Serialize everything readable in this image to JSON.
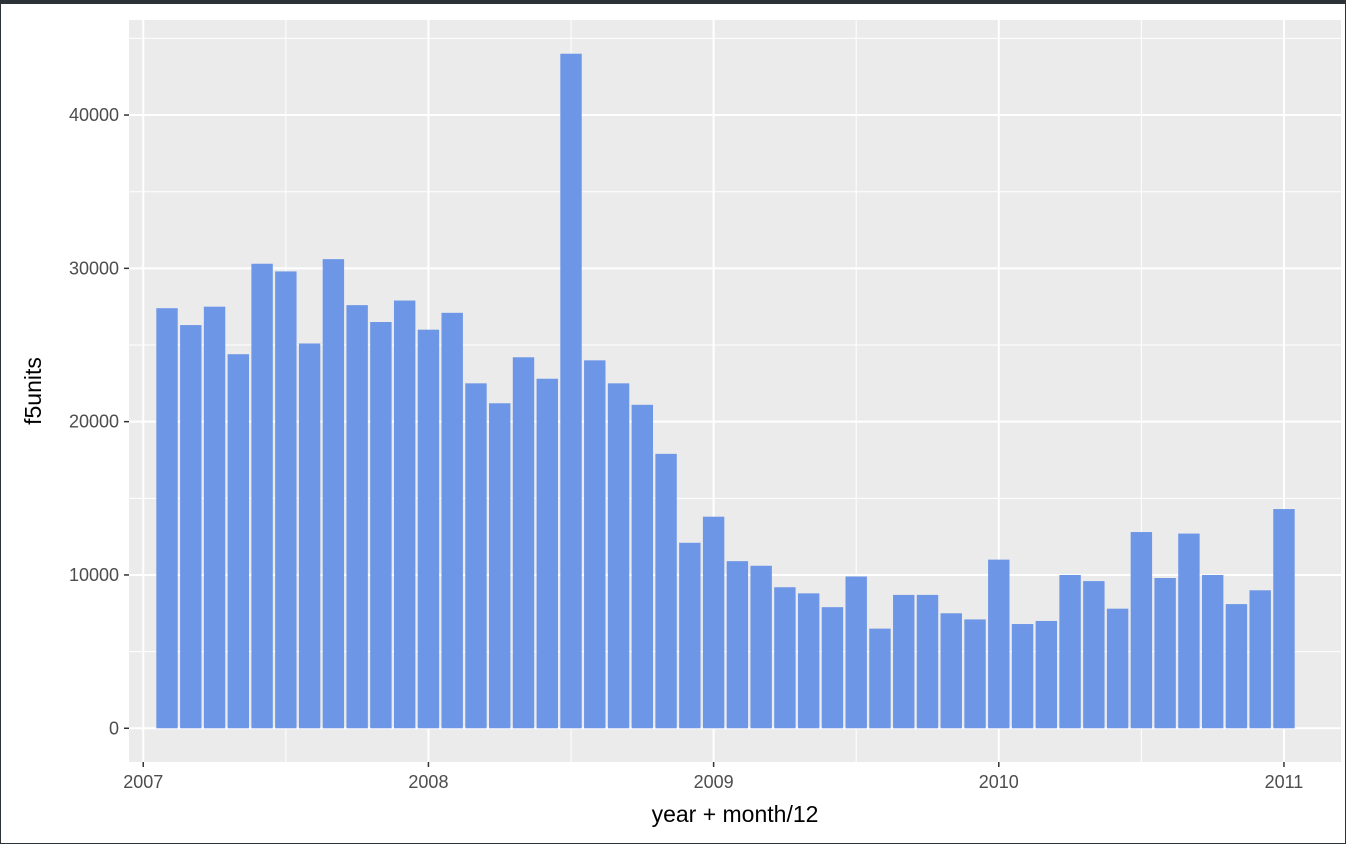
{
  "chart_data": {
    "type": "bar",
    "xlabel": "year + month/12",
    "ylabel": "f5units",
    "xlim": [
      2006.95,
      2011.2
    ],
    "ylim": [
      -2200,
      46200
    ],
    "x_ticks": [
      2007,
      2008,
      2009,
      2010,
      2011
    ],
    "x_tick_labels": [
      "2007",
      "2008",
      "2009",
      "2010",
      "2011"
    ],
    "y_ticks": [
      0,
      10000,
      20000,
      30000,
      40000
    ],
    "y_tick_labels": [
      "0",
      "10000",
      "20000",
      "30000",
      "40000"
    ],
    "bar_color": "#6d96e6",
    "panel_color": "#ebebeb",
    "grid": true,
    "x": [
      2007.0833,
      2007.1667,
      2007.25,
      2007.3333,
      2007.4167,
      2007.5,
      2007.5833,
      2007.6667,
      2007.75,
      2007.8333,
      2007.9167,
      2008.0,
      2008.0833,
      2008.1667,
      2008.25,
      2008.3333,
      2008.4167,
      2008.5,
      2008.5833,
      2008.6667,
      2008.75,
      2008.8333,
      2008.9167,
      2009.0,
      2009.0833,
      2009.1667,
      2009.25,
      2009.3333,
      2009.4167,
      2009.5,
      2009.5833,
      2009.6667,
      2009.75,
      2009.8333,
      2009.9167,
      2010.0,
      2010.0833,
      2010.1667,
      2010.25,
      2010.3333,
      2010.4167,
      2010.5,
      2010.5833,
      2010.6667,
      2010.75,
      2010.8333,
      2010.9167,
      2011.0
    ],
    "values": [
      27400,
      26300,
      27500,
      24400,
      30300,
      29800,
      25100,
      30600,
      27600,
      26500,
      27900,
      26000,
      27100,
      22500,
      21200,
      24200,
      22800,
      44000,
      24000,
      22500,
      21100,
      17900,
      12100,
      13800,
      10900,
      10600,
      9200,
      8800,
      7900,
      9900,
      6500,
      8700,
      8700,
      7500,
      7100,
      11000,
      6800,
      7000,
      10000,
      9600,
      7800,
      12800,
      9800,
      12700,
      10000,
      8100,
      9000,
      14300
    ]
  }
}
